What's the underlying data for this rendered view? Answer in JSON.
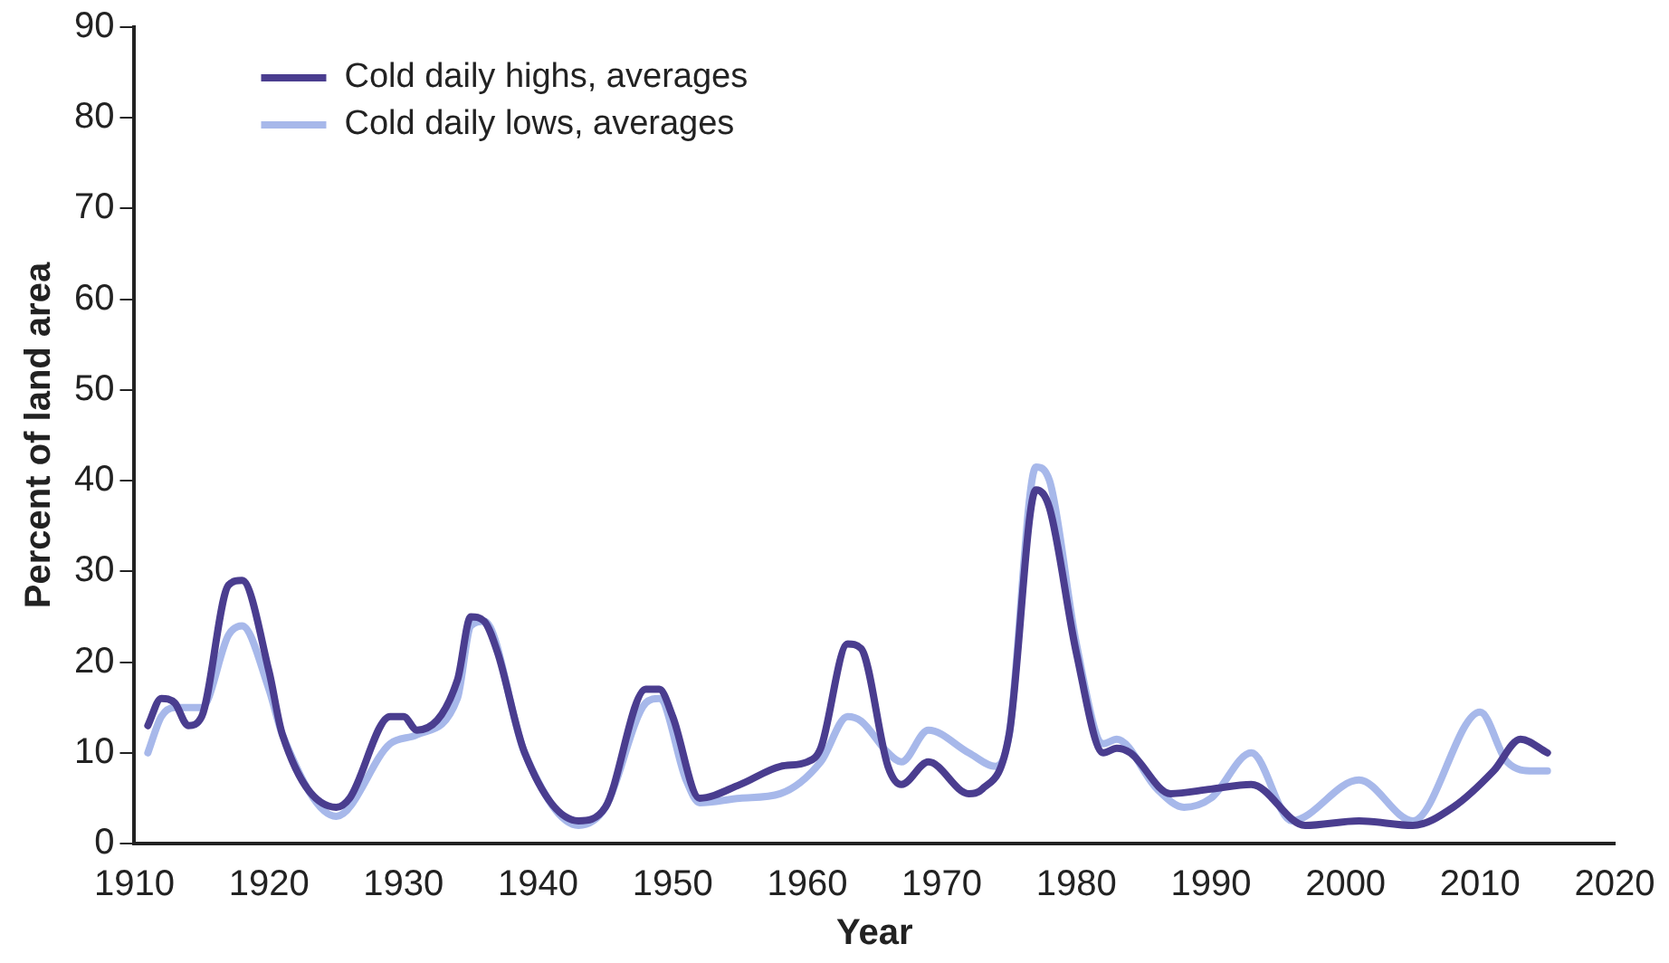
{
  "chart_data": {
    "type": "line",
    "xlabel": "Year",
    "ylabel": "Percent of land area",
    "xlim": [
      1910,
      2020
    ],
    "xticks": [
      1910,
      1920,
      1930,
      1940,
      1950,
      1960,
      1970,
      1980,
      1990,
      2000,
      2010,
      2020
    ],
    "ylim": [
      0,
      90
    ],
    "yticks": [
      0,
      10,
      20,
      30,
      40,
      50,
      60,
      70,
      80,
      90
    ],
    "grid": false,
    "legend": "top left",
    "marker": "none",
    "line_style": "solid",
    "series": [
      {
        "name": "Cold daily highs, averages",
        "color": "#4a3d8f",
        "x": [
          1911,
          1912,
          1913,
          1914,
          1915,
          1917,
          1918,
          1920,
          1921,
          1925,
          1926,
          1929,
          1930,
          1931,
          1934,
          1935,
          1936,
          1937,
          1939,
          1943,
          1945,
          1948,
          1949,
          1950,
          1952,
          1955,
          1958,
          1960,
          1961,
          1963,
          1964,
          1966,
          1967,
          1969,
          1972,
          1973,
          1975,
          1977,
          1978,
          1980,
          1982,
          1983,
          1984,
          1987,
          1990,
          1993,
          1997,
          2001,
          2005,
          2008,
          2011,
          2013,
          2015
        ],
        "values": [
          13,
          16,
          15.5,
          13,
          14,
          28.5,
          29,
          19,
          12,
          4,
          5,
          14,
          14,
          12.5,
          18,
          25,
          24.5,
          21,
          10,
          2.5,
          4,
          17,
          17,
          14,
          5,
          6.5,
          8.5,
          9,
          10.5,
          22,
          21.5,
          8.5,
          6.5,
          9,
          5.5,
          6,
          12,
          39,
          37,
          21,
          10,
          10.5,
          10,
          5.5,
          6,
          6.5,
          2,
          2.5,
          2,
          4,
          8,
          11.5,
          10
        ]
      },
      {
        "name": "Cold daily lows, averages",
        "color": "#a7b8ea",
        "x": [
          1911,
          1912,
          1913,
          1915,
          1917,
          1918,
          1920,
          1921,
          1925,
          1929,
          1931,
          1934,
          1935,
          1936,
          1939,
          1943,
          1945,
          1948,
          1949,
          1951,
          1952,
          1955,
          1958,
          1961,
          1963,
          1964,
          1966,
          1967,
          1969,
          1972,
          1974,
          1975,
          1977,
          1978,
          1980,
          1982,
          1983,
          1986,
          1988,
          1990,
          1993,
          1996,
          2001,
          2005,
          2010,
          2012,
          2014,
          2015
        ],
        "values": [
          10,
          14,
          15,
          15,
          23,
          24,
          17,
          12,
          3,
          11,
          12,
          16,
          24,
          24.5,
          10,
          2,
          4,
          15.5,
          16,
          7,
          4.5,
          5,
          5.5,
          9,
          14,
          13.5,
          10,
          9,
          12.5,
          10,
          8.5,
          12,
          41.5,
          40,
          22,
          11,
          11.5,
          6,
          4,
          5,
          10,
          2.5,
          7,
          2.5,
          14.5,
          9,
          8,
          8
        ]
      }
    ]
  }
}
